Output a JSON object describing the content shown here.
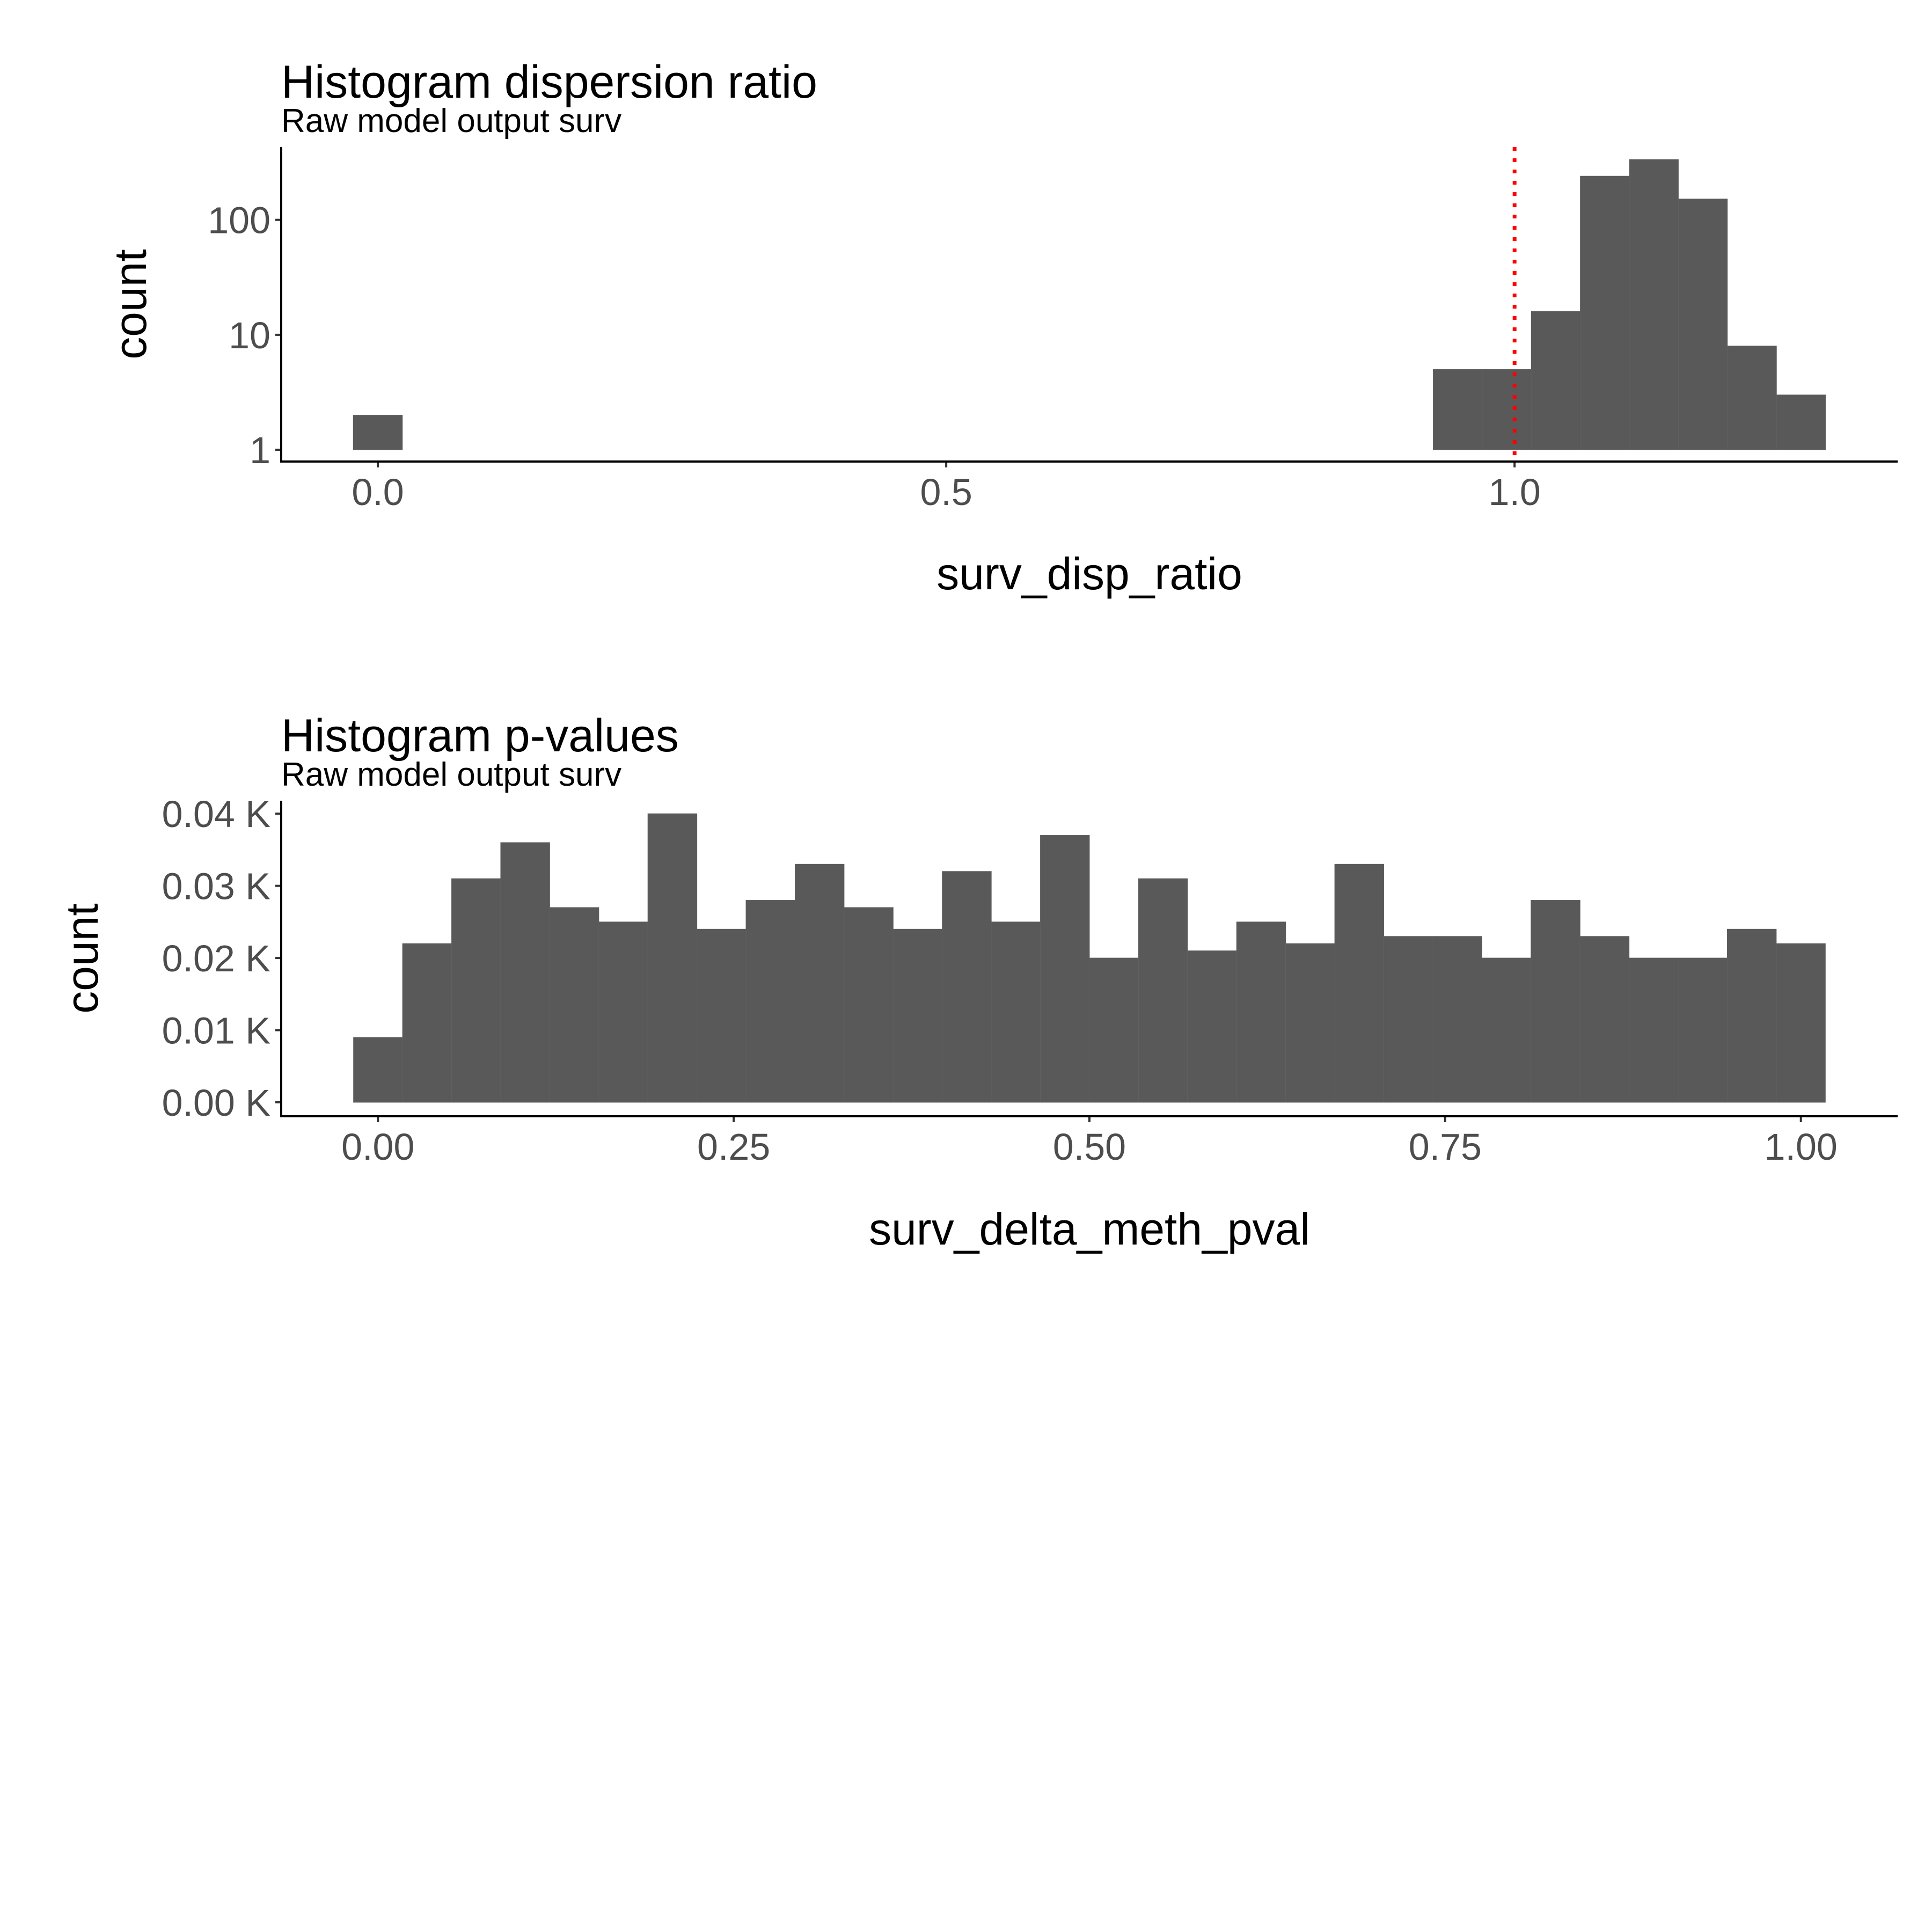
{
  "colors": {
    "bar_fill": "#595959",
    "reference_line": "#ff0000",
    "tick_label": "#4d4d4d"
  },
  "chart_data": [
    {
      "type": "bar",
      "title": "Histogram dispersion ratio",
      "subtitle": "Raw model output surv",
      "xlabel": "surv_disp_ratio",
      "ylabel": "count",
      "y_scale": "log10",
      "xlim": [
        -0.085,
        1.337
      ],
      "ylim": [
        0.79,
        430
      ],
      "x_ticks": [
        0,
        0.5,
        1.0
      ],
      "x_tick_labels": [
        "0.0",
        "0.5",
        "1.0"
      ],
      "y_ticks": [
        1,
        10,
        100
      ],
      "y_tick_labels": [
        "1",
        "10",
        "100"
      ],
      "bin_width": 0.0431,
      "bins": [
        {
          "x_start": -0.0216,
          "x_end": 0.0216,
          "count": 2
        },
        {
          "x_start": 0.9284,
          "x_end": 0.9716,
          "count": 5
        },
        {
          "x_start": 0.9716,
          "x_end": 1.0147,
          "count": 5
        },
        {
          "x_start": 1.0147,
          "x_end": 1.0578,
          "count": 16
        },
        {
          "x_start": 1.0578,
          "x_end": 1.101,
          "count": 240
        },
        {
          "x_start": 1.101,
          "x_end": 1.1441,
          "count": 335
        },
        {
          "x_start": 1.1441,
          "x_end": 1.1872,
          "count": 152
        },
        {
          "x_start": 1.1872,
          "x_end": 1.2304,
          "count": 8
        },
        {
          "x_start": 1.2304,
          "x_end": 1.2735,
          "count": 3
        }
      ],
      "reference_line": {
        "x": 1.0,
        "style": "dotted",
        "color": "#ff0000"
      },
      "grid": false
    },
    {
      "type": "bar",
      "title": "Histogram p-values",
      "subtitle": "Raw model output surv",
      "xlabel": "surv_delta_meth_pval",
      "ylabel": "count",
      "xlim": [
        -0.068,
        1.068
      ],
      "ylim": [
        0,
        0.0418
      ],
      "x_ticks": [
        0,
        0.25,
        0.5,
        0.75,
        1.0
      ],
      "x_tick_labels": [
        "0.00",
        "0.25",
        "0.50",
        "0.75",
        "1.00"
      ],
      "y_ticks": [
        0,
        0.01,
        0.02,
        0.03,
        0.04
      ],
      "y_tick_labels": [
        "0.00 K",
        "0.01 K",
        "0.02 K",
        "0.03 K",
        "0.04 K"
      ],
      "y_unit": "K",
      "bin_start": -0.0172,
      "bin_width": 0.03448,
      "values": [
        0.009,
        0.022,
        0.031,
        0.036,
        0.027,
        0.025,
        0.04,
        0.024,
        0.028,
        0.033,
        0.027,
        0.024,
        0.032,
        0.025,
        0.037,
        0.02,
        0.031,
        0.021,
        0.025,
        0.022,
        0.033,
        0.023,
        0.023,
        0.02,
        0.028,
        0.023,
        0.02,
        0.02,
        0.024,
        0.022
      ],
      "grid": false
    }
  ]
}
